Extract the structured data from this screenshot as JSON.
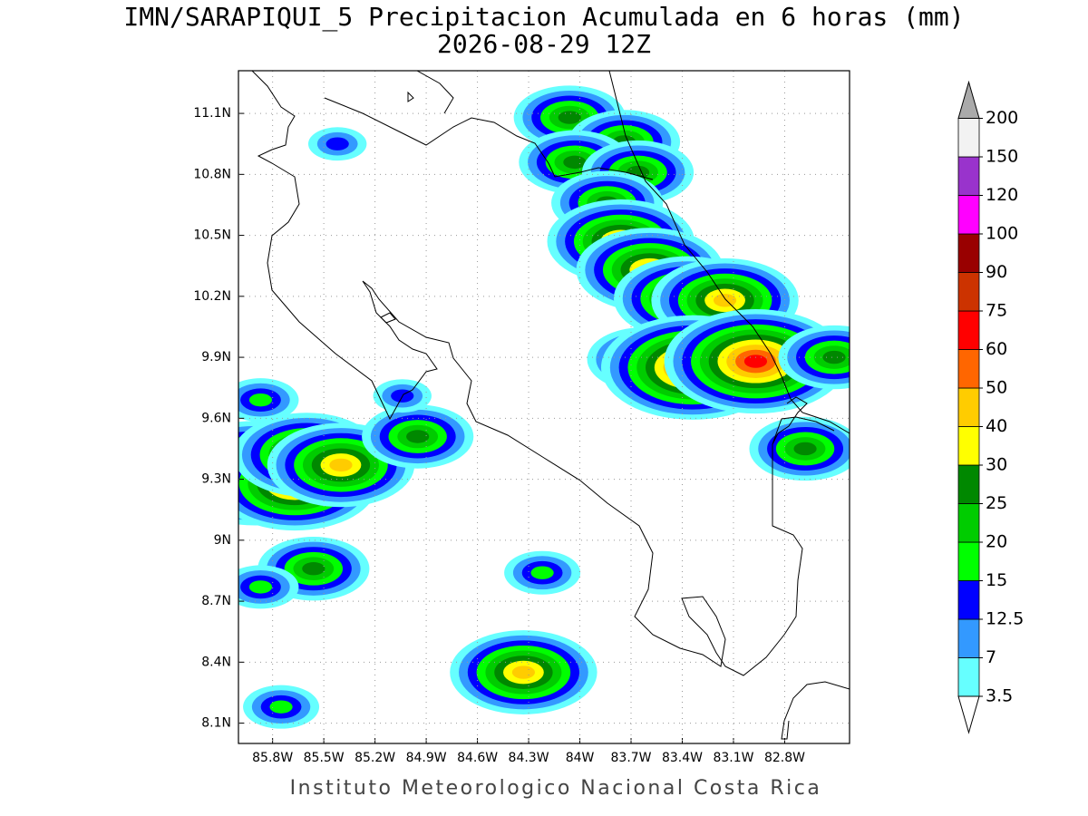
{
  "chart_data": {
    "type": "map",
    "title": "IMN/SARAPIQUI_5 Precipitacion Acumulada en 6 horas (mm)",
    "subtitle": "2026-08-29 12Z",
    "footer": "Instituto Meteorologico Nacional Costa Rica",
    "xlim": [
      -86.0,
      -82.42
    ],
    "ylim": [
      8.0,
      11.31
    ],
    "grid": true,
    "xticks": [
      {
        "value": -85.8,
        "label": "85.8W"
      },
      {
        "value": -85.5,
        "label": "85.5W"
      },
      {
        "value": -85.2,
        "label": "85.2W"
      },
      {
        "value": -84.9,
        "label": "84.9W"
      },
      {
        "value": -84.6,
        "label": "84.6W"
      },
      {
        "value": -84.3,
        "label": "84.3W"
      },
      {
        "value": -84,
        "label": "84W"
      },
      {
        "value": -83.7,
        "label": "83.7W"
      },
      {
        "value": -83.4,
        "label": "83.4W"
      },
      {
        "value": -83.1,
        "label": "83.1W"
      },
      {
        "value": -82.8,
        "label": "82.8W"
      }
    ],
    "yticks": [
      {
        "value": 11.1,
        "label": "11.1N"
      },
      {
        "value": 10.8,
        "label": "10.8N"
      },
      {
        "value": 10.5,
        "label": "10.5N"
      },
      {
        "value": 10.2,
        "label": "10.2N"
      },
      {
        "value": 9.9,
        "label": "9.9N"
      },
      {
        "value": 9.6,
        "label": "9.6N"
      },
      {
        "value": 9.3,
        "label": "9.3N"
      },
      {
        "value": 9,
        "label": "9N"
      },
      {
        "value": 8.7,
        "label": "8.7N"
      },
      {
        "value": 8.4,
        "label": "8.4N"
      },
      {
        "value": 8.1,
        "label": "8.1N"
      }
    ],
    "levels": [
      3.5,
      7,
      12.5,
      15,
      20,
      25,
      30,
      40,
      50,
      60,
      75,
      90,
      100,
      120,
      150,
      200
    ],
    "colors": [
      "#66ffff",
      "#3399ff",
      "#0000ff",
      "#00ff00",
      "#00cc00",
      "#008800",
      "#ffff00",
      "#ffcc00",
      "#ff6600",
      "#ff0000",
      "#cc3300",
      "#990000",
      "#ff00ff",
      "#9933cc",
      "#f2f2f2"
    ],
    "over_color": "#aaaaaa",
    "under_color": "#ffffff",
    "cells": [
      {
        "lon": -84.06,
        "lat": 11.08,
        "value": 25
      },
      {
        "lon": -83.74,
        "lat": 10.96,
        "value": 25
      },
      {
        "lon": -84.03,
        "lat": 10.86,
        "value": 25
      },
      {
        "lon": -83.66,
        "lat": 10.81,
        "value": 25
      },
      {
        "lon": -83.84,
        "lat": 10.66,
        "value": 25
      },
      {
        "lon": -83.76,
        "lat": 10.47,
        "value": 40
      },
      {
        "lon": -83.59,
        "lat": 10.33,
        "value": 40
      },
      {
        "lon": -83.37,
        "lat": 10.19,
        "value": 40
      },
      {
        "lon": -83.15,
        "lat": 10.18,
        "value": 40
      },
      {
        "lon": -83.63,
        "lat": 9.89,
        "value": 25
      },
      {
        "lon": -83.34,
        "lat": 9.85,
        "value": 60
      },
      {
        "lon": -82.97,
        "lat": 9.88,
        "value": 60
      },
      {
        "lon": -82.51,
        "lat": 9.9,
        "value": 25
      },
      {
        "lon": -85.9,
        "lat": 9.33,
        "value": 60
      },
      {
        "lon": -85.67,
        "lat": 9.28,
        "value": 50
      },
      {
        "lon": -85.6,
        "lat": 9.42,
        "value": 40
      },
      {
        "lon": -85.4,
        "lat": 9.37,
        "value": 40
      },
      {
        "lon": -84.95,
        "lat": 9.51,
        "value": 25
      },
      {
        "lon": -85.87,
        "lat": 9.69,
        "value": 15
      },
      {
        "lon": -85.56,
        "lat": 8.86,
        "value": 25
      },
      {
        "lon": -85.87,
        "lat": 8.77,
        "value": 15
      },
      {
        "lon": -84.33,
        "lat": 8.35,
        "value": 40
      },
      {
        "lon": -84.22,
        "lat": 8.84,
        "value": 15
      },
      {
        "lon": -85.75,
        "lat": 8.18,
        "value": 15
      },
      {
        "lon": -82.68,
        "lat": 9.45,
        "value": 25
      },
      {
        "lon": -85.42,
        "lat": 10.95,
        "value": 12.5
      },
      {
        "lon": -85.04,
        "lat": 9.71,
        "value": 12.5
      }
    ]
  }
}
